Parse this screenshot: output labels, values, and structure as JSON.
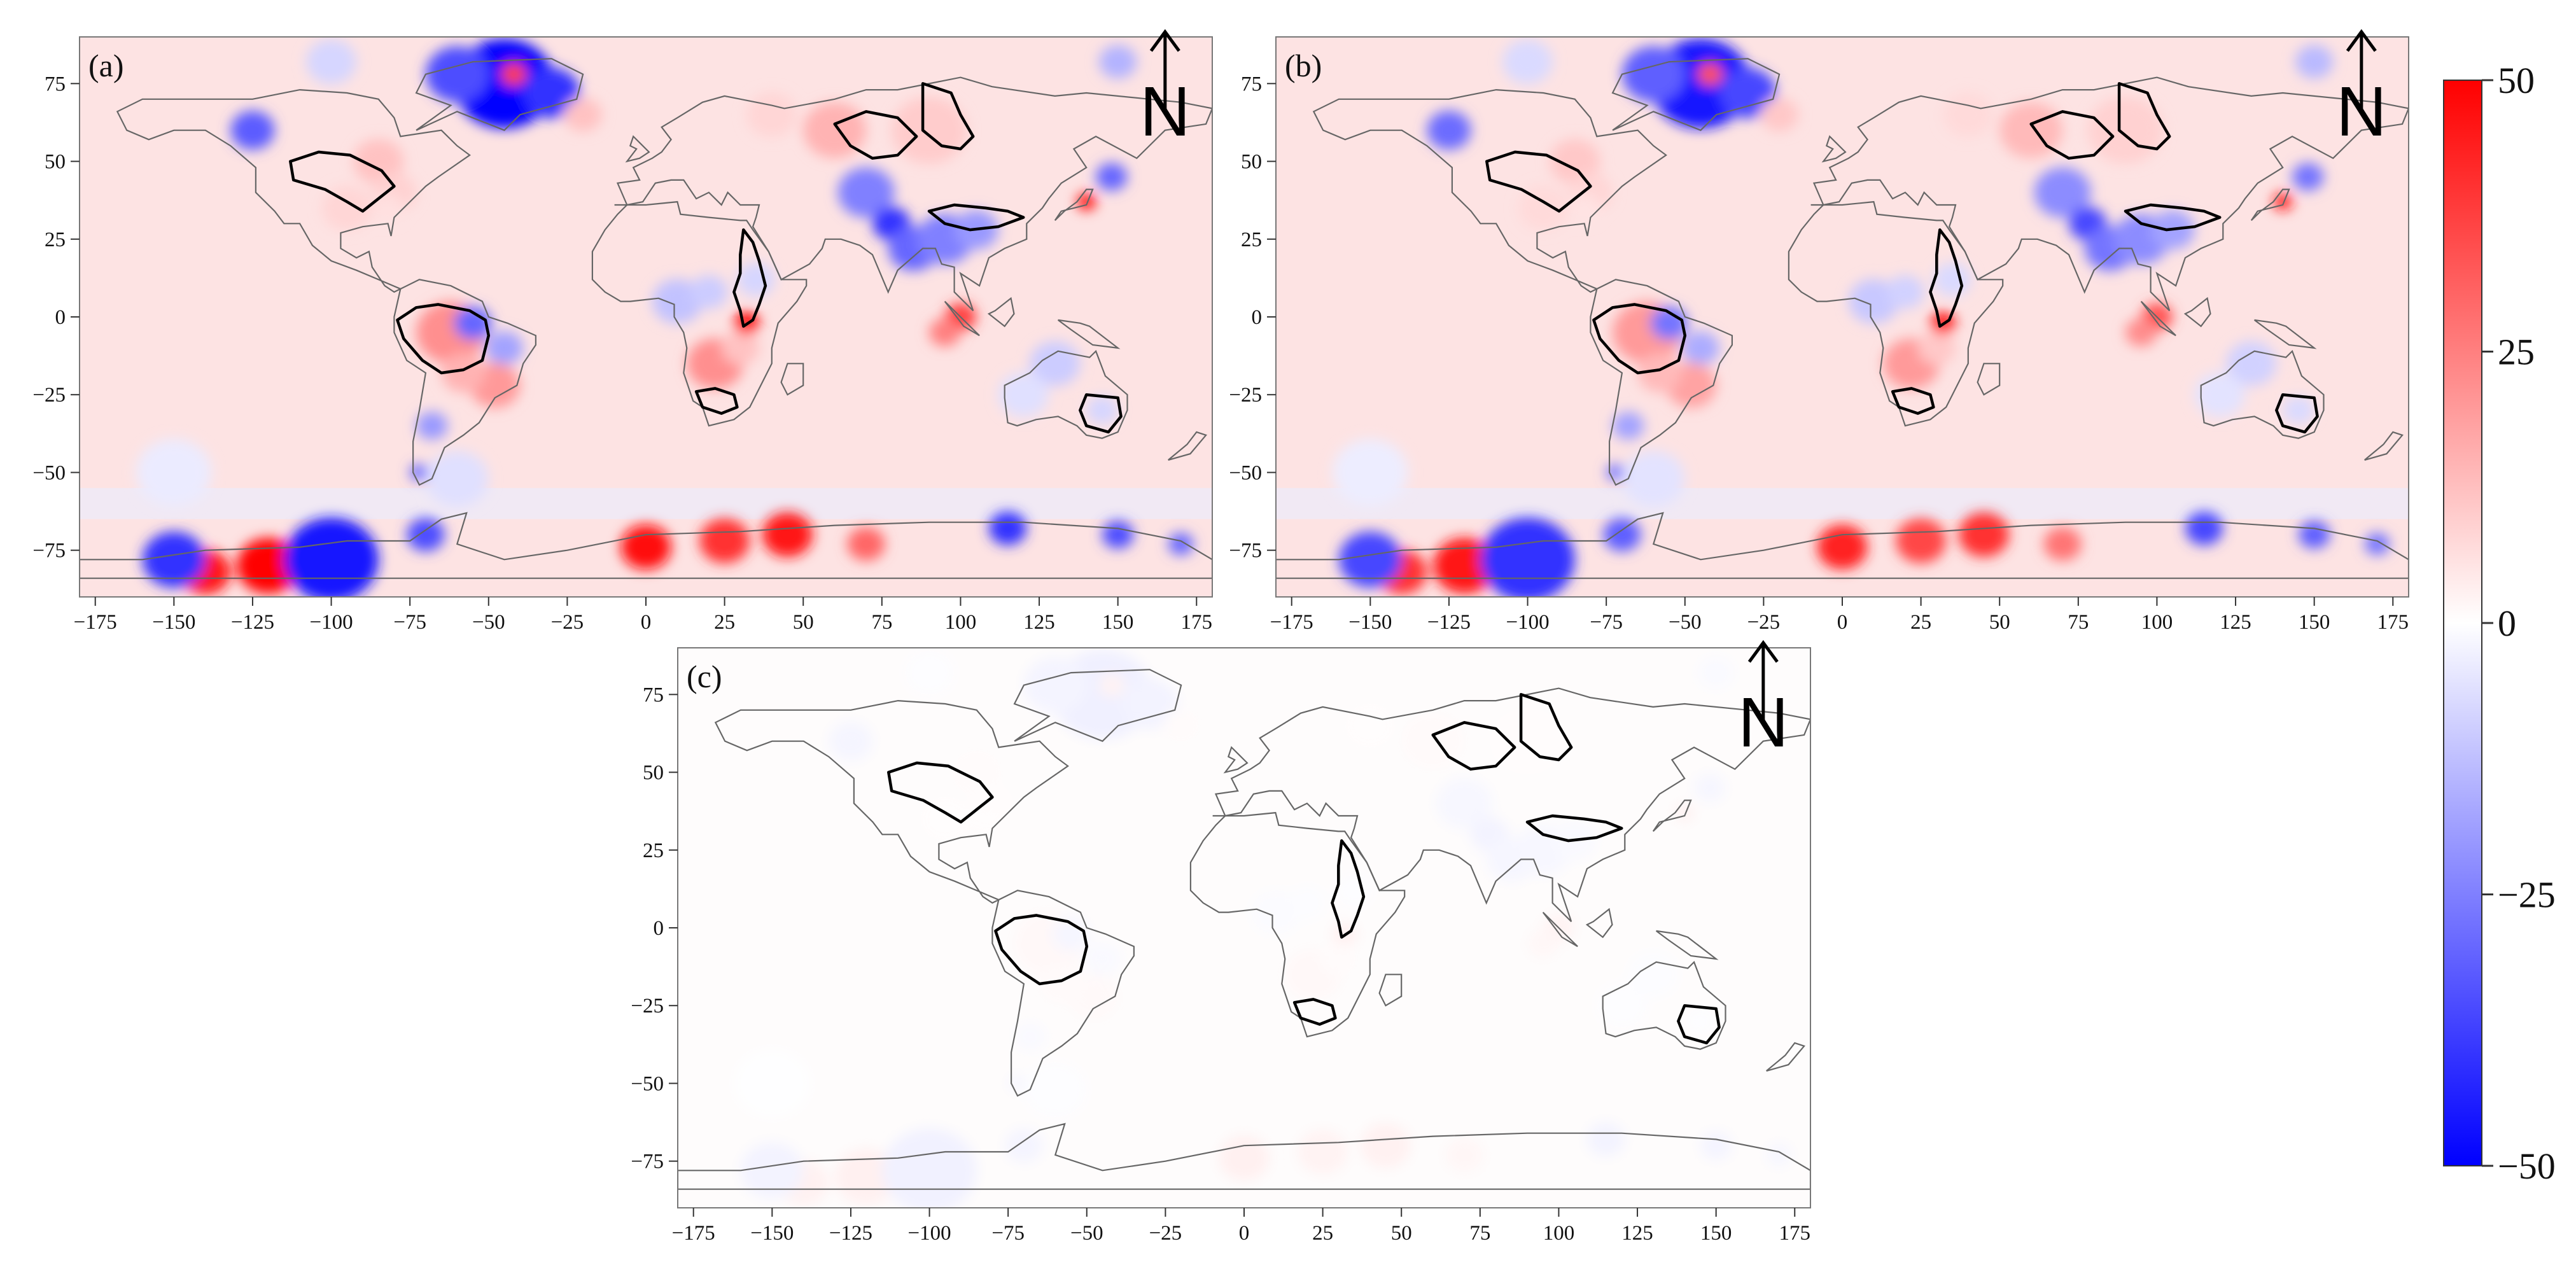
{
  "figure": {
    "colors": {
      "positive": "#ff0000",
      "negative": "#0000ff",
      "neutral": "#ffffff",
      "coastline": "#666666",
      "basin_outline": "#000000",
      "ocean_tint_red": "#fde3e3",
      "ocean_tint_blue": "#e9ecff"
    },
    "x_ticks": [
      "−175",
      "−150",
      "−125",
      "−100",
      "−75",
      "−50",
      "−25",
      "0",
      "25",
      "50",
      "75",
      "100",
      "125",
      "150",
      "175"
    ],
    "y_ticks": [
      "75",
      "50",
      "25",
      "0",
      "−25",
      "−50",
      "−75"
    ],
    "x_tick_values": [
      -175,
      -150,
      -125,
      -100,
      -75,
      -50,
      -25,
      0,
      25,
      50,
      75,
      100,
      125,
      150,
      175
    ],
    "y_tick_values": [
      75,
      50,
      25,
      0,
      -25,
      -50,
      -75
    ],
    "lon_range": [
      -180,
      180
    ],
    "lat_range": [
      -90,
      90
    ],
    "north_arrow_letter": "N",
    "north_arrow_icon": "north-arrow-icon",
    "panels": [
      {
        "label": "(a)",
        "intensity": 1.0
      },
      {
        "label": "(b)",
        "intensity": 0.9
      },
      {
        "label": "(c)",
        "intensity": 0.06
      }
    ],
    "colorbar": {
      "ticks": [
        "50",
        "25",
        "0",
        "−25",
        "−50"
      ],
      "tick_values": [
        50,
        25,
        0,
        -25,
        -50
      ],
      "range": [
        -50,
        50
      ]
    }
  }
}
